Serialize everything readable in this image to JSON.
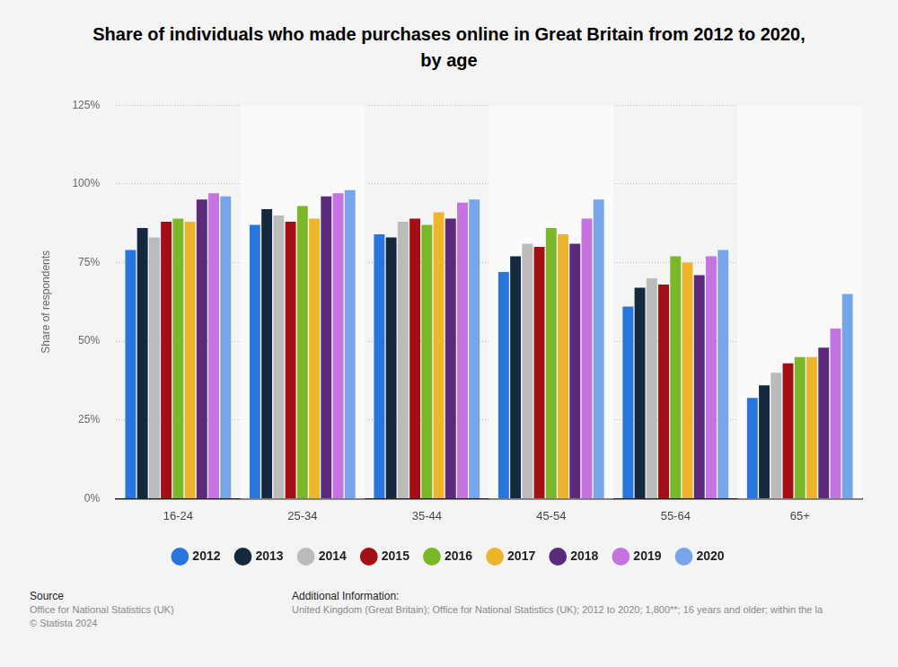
{
  "chart_data": {
    "type": "bar",
    "title": "Share of individuals who made purchases online in Great Britain from 2012 to 2020, by age",
    "y_label": "Share of respondents",
    "categories": [
      "16-24",
      "25-34",
      "35-44",
      "45-54",
      "55-64",
      "65+"
    ],
    "series": [
      {
        "name": "2012",
        "color": "#2876dd",
        "values": [
          79,
          87,
          84,
          72,
          61,
          32
        ]
      },
      {
        "name": "2013",
        "color": "#14283e",
        "values": [
          86,
          92,
          83,
          77,
          67,
          36
        ]
      },
      {
        "name": "2014",
        "color": "#bbbbbb",
        "values": [
          83,
          90,
          88,
          81,
          70,
          40
        ]
      },
      {
        "name": "2015",
        "color": "#a30f15",
        "values": [
          88,
          88,
          89,
          80,
          68,
          43
        ]
      },
      {
        "name": "2016",
        "color": "#7ab82a",
        "values": [
          89,
          93,
          87,
          86,
          77,
          45
        ]
      },
      {
        "name": "2017",
        "color": "#edb52c",
        "values": [
          88,
          89,
          91,
          84,
          75,
          45
        ]
      },
      {
        "name": "2018",
        "color": "#5b2a7c",
        "values": [
          95,
          96,
          89,
          81,
          71,
          48
        ]
      },
      {
        "name": "2019",
        "color": "#c473e0",
        "values": [
          97,
          97,
          94,
          89,
          77,
          54
        ]
      },
      {
        "name": "2020",
        "color": "#76a6e9",
        "values": [
          96,
          98,
          95,
          95,
          79,
          65
        ]
      }
    ],
    "ylim": [
      0,
      125
    ],
    "yticks": [
      {
        "value": 0,
        "label": "0%"
      },
      {
        "value": 25,
        "label": "25%"
      },
      {
        "value": 50,
        "label": "50%"
      },
      {
        "value": 75,
        "label": "75%"
      },
      {
        "value": 100,
        "label": "100%"
      },
      {
        "value": 125,
        "label": "125%"
      }
    ],
    "grid": true,
    "legend": "bottom"
  },
  "footer": {
    "source": {
      "heading": "Source",
      "lines": [
        "Office for National Statistics (UK)",
        "© Statista 2024"
      ]
    },
    "additional_information": {
      "heading": "Additional Information:",
      "text": "United Kingdom (Great Britain); Office for National Statistics (UK); 2012 to 2020; 1,800**; 16 years and older; within the la"
    }
  }
}
